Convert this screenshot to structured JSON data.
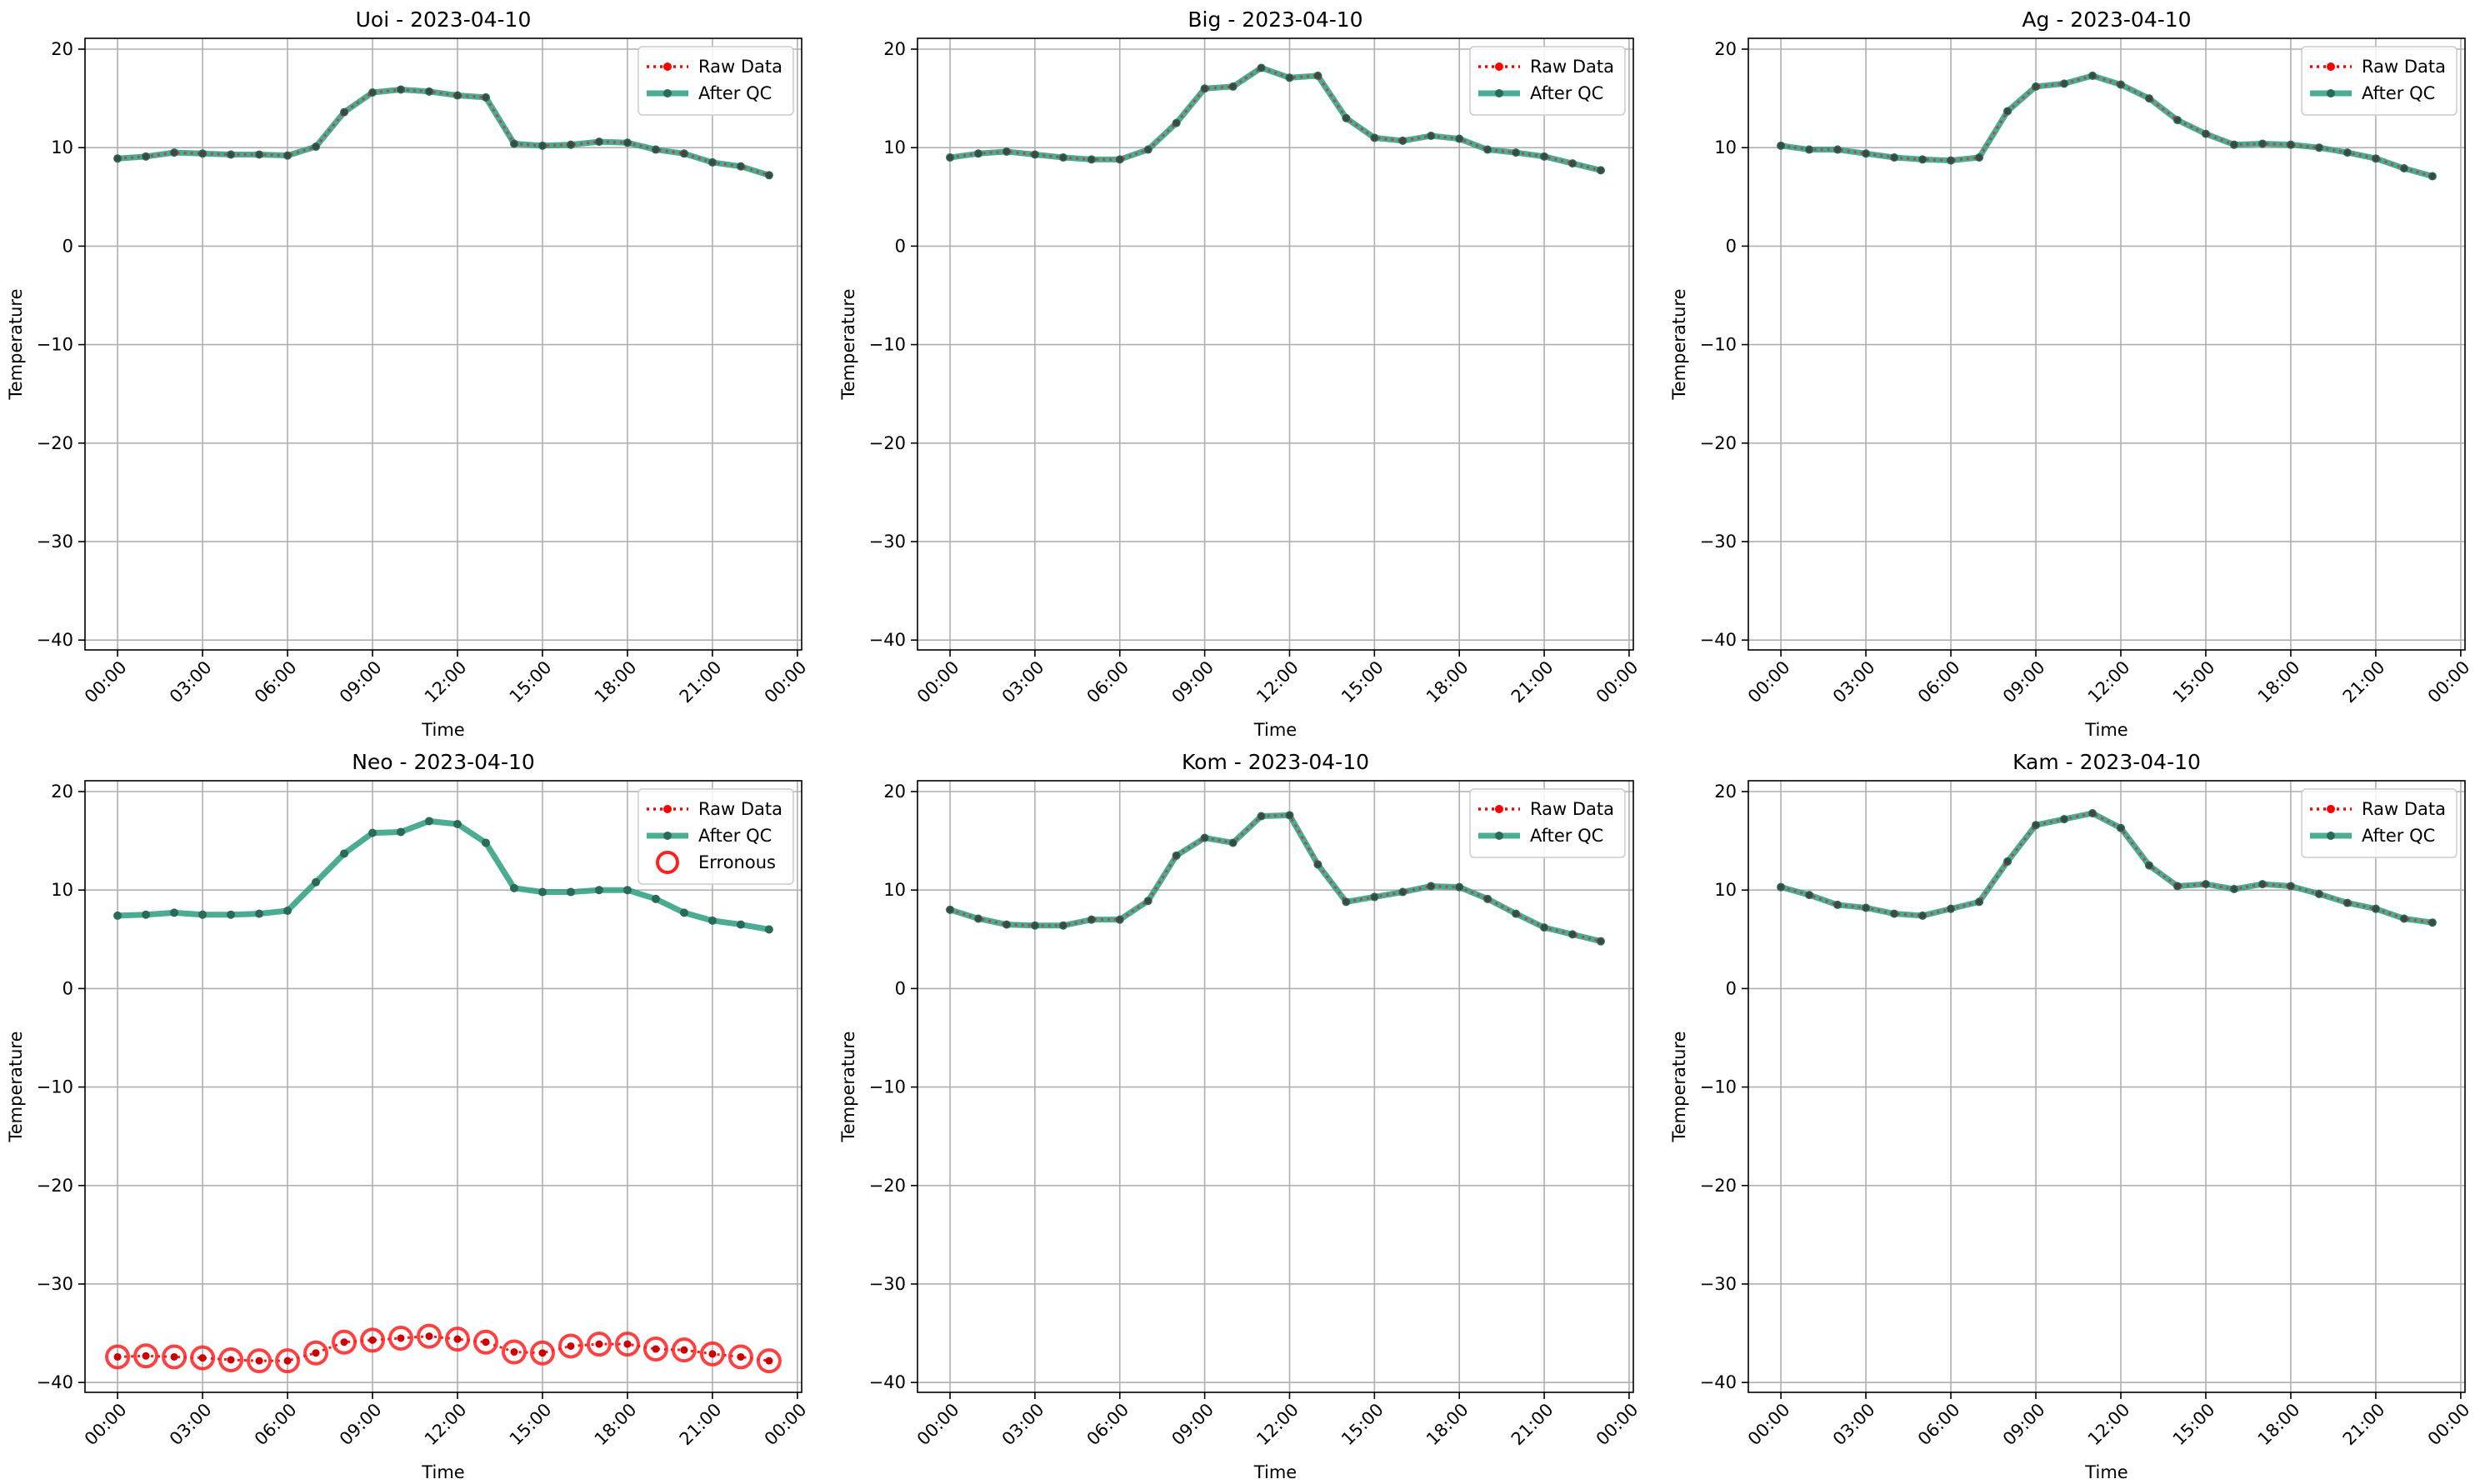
{
  "chart_data": [
    {
      "type": "line",
      "title": "Uoi - 2023-04-10",
      "xlabel": "Time",
      "ylabel": "Temperature",
      "ylim": [
        -40,
        20
      ],
      "yticks": [
        -40,
        -30,
        -20,
        -10,
        0,
        10,
        20
      ],
      "xticks": [
        "00:00",
        "03:00",
        "06:00",
        "09:00",
        "12:00",
        "15:00",
        "18:00",
        "21:00",
        "00:00"
      ],
      "grid": true,
      "legend_position": "upper-right",
      "x_hours": [
        0,
        1,
        2,
        3,
        4,
        5,
        6,
        7,
        8,
        9,
        10,
        11,
        12,
        13,
        14,
        15,
        16,
        17,
        18,
        19,
        20,
        21,
        22,
        23
      ],
      "series": [
        {
          "name": "Raw Data",
          "color": "#ff0000",
          "values": [
            8.9,
            9.1,
            9.5,
            9.4,
            9.3,
            9.3,
            9.2,
            10.1,
            13.6,
            15.6,
            15.9,
            15.7,
            15.3,
            15.1,
            10.4,
            10.2,
            10.3,
            10.6,
            10.5,
            9.8,
            9.4,
            8.5,
            8.1,
            7.2
          ]
        },
        {
          "name": "After QC",
          "color": "#2a9d7f",
          "values": [
            8.9,
            9.1,
            9.5,
            9.4,
            9.3,
            9.3,
            9.2,
            10.1,
            13.6,
            15.6,
            15.9,
            15.7,
            15.3,
            15.1,
            10.4,
            10.2,
            10.3,
            10.6,
            10.5,
            9.8,
            9.4,
            8.5,
            8.1,
            7.2
          ]
        }
      ],
      "legend": [
        "Raw Data",
        "After QC"
      ]
    },
    {
      "type": "line",
      "title": "Big - 2023-04-10",
      "xlabel": "Time",
      "ylabel": "Temperature",
      "ylim": [
        -40,
        20
      ],
      "yticks": [
        -40,
        -30,
        -20,
        -10,
        0,
        10,
        20
      ],
      "xticks": [
        "00:00",
        "03:00",
        "06:00",
        "09:00",
        "12:00",
        "15:00",
        "18:00",
        "21:00",
        "00:00"
      ],
      "grid": true,
      "legend_position": "upper-right",
      "x_hours": [
        0,
        1,
        2,
        3,
        4,
        5,
        6,
        7,
        8,
        9,
        10,
        11,
        12,
        13,
        14,
        15,
        16,
        17,
        18,
        19,
        20,
        21,
        22,
        23
      ],
      "series": [
        {
          "name": "Raw Data",
          "color": "#ff0000",
          "values": [
            9.0,
            9.4,
            9.6,
            9.3,
            9.0,
            8.8,
            8.8,
            9.8,
            12.5,
            16.0,
            16.2,
            18.1,
            17.1,
            17.3,
            13.0,
            11.0,
            10.7,
            11.2,
            10.9,
            9.8,
            9.5,
            9.1,
            8.4,
            7.7
          ]
        },
        {
          "name": "After QC",
          "color": "#2a9d7f",
          "values": [
            9.0,
            9.4,
            9.6,
            9.3,
            9.0,
            8.8,
            8.8,
            9.8,
            12.5,
            16.0,
            16.2,
            18.1,
            17.1,
            17.3,
            13.0,
            11.0,
            10.7,
            11.2,
            10.9,
            9.8,
            9.5,
            9.1,
            8.4,
            7.7
          ]
        }
      ],
      "legend": [
        "Raw Data",
        "After QC"
      ]
    },
    {
      "type": "line",
      "title": "Ag - 2023-04-10",
      "xlabel": "Time",
      "ylabel": "Temperature",
      "ylim": [
        -40,
        20
      ],
      "yticks": [
        -40,
        -30,
        -20,
        -10,
        0,
        10,
        20
      ],
      "xticks": [
        "00:00",
        "03:00",
        "06:00",
        "09:00",
        "12:00",
        "15:00",
        "18:00",
        "21:00",
        "00:00"
      ],
      "grid": true,
      "legend_position": "upper-right",
      "x_hours": [
        0,
        1,
        2,
        3,
        4,
        5,
        6,
        7,
        8,
        9,
        10,
        11,
        12,
        13,
        14,
        15,
        16,
        17,
        18,
        19,
        20,
        21,
        22,
        23
      ],
      "series": [
        {
          "name": "Raw Data",
          "color": "#ff0000",
          "values": [
            10.2,
            9.8,
            9.8,
            9.4,
            9.0,
            8.8,
            8.7,
            9.0,
            13.7,
            16.2,
            16.5,
            17.3,
            16.4,
            15.0,
            12.8,
            11.4,
            10.3,
            10.4,
            10.3,
            10.0,
            9.5,
            8.9,
            7.9,
            7.1
          ]
        },
        {
          "name": "After QC",
          "color": "#2a9d7f",
          "values": [
            10.2,
            9.8,
            9.8,
            9.4,
            9.0,
            8.8,
            8.7,
            9.0,
            13.7,
            16.2,
            16.5,
            17.3,
            16.4,
            15.0,
            12.8,
            11.4,
            10.3,
            10.4,
            10.3,
            10.0,
            9.5,
            8.9,
            7.9,
            7.1
          ]
        }
      ],
      "legend": [
        "Raw Data",
        "After QC"
      ]
    },
    {
      "type": "line",
      "title": "Neo - 2023-04-10",
      "xlabel": "Time",
      "ylabel": "Temperature",
      "ylim": [
        -40,
        20
      ],
      "yticks": [
        -40,
        -30,
        -20,
        -10,
        0,
        10,
        20
      ],
      "xticks": [
        "00:00",
        "03:00",
        "06:00",
        "09:00",
        "12:00",
        "15:00",
        "18:00",
        "21:00",
        "00:00"
      ],
      "grid": true,
      "legend_position": "upper-right",
      "x_hours": [
        0,
        1,
        2,
        3,
        4,
        5,
        6,
        7,
        8,
        9,
        10,
        11,
        12,
        13,
        14,
        15,
        16,
        17,
        18,
        19,
        20,
        21,
        22,
        23
      ],
      "series": [
        {
          "name": "Raw Data",
          "color": "#ff0000",
          "values": [
            -37.4,
            -37.3,
            -37.4,
            -37.5,
            -37.7,
            -37.8,
            -37.8,
            -37.0,
            -35.9,
            -35.7,
            -35.5,
            -35.3,
            -35.6,
            -35.9,
            -36.9,
            -37.0,
            -36.3,
            -36.1,
            -36.1,
            -36.6,
            -36.7,
            -37.1,
            -37.4,
            -37.8
          ]
        },
        {
          "name": "After QC",
          "color": "#2a9d7f",
          "values": [
            7.4,
            7.5,
            7.7,
            7.5,
            7.5,
            7.6,
            7.9,
            10.8,
            13.7,
            15.8,
            15.9,
            17.0,
            16.7,
            14.8,
            10.2,
            9.8,
            9.8,
            10.0,
            10.0,
            9.1,
            7.7,
            6.9,
            6.5,
            6.0
          ]
        },
        {
          "name": "Erronous",
          "color": "#ff0000",
          "values": [
            -37.4,
            -37.3,
            -37.4,
            -37.5,
            -37.7,
            -37.8,
            -37.8,
            -37.0,
            -35.9,
            -35.7,
            -35.5,
            -35.3,
            -35.6,
            -35.9,
            -36.9,
            -37.0,
            -36.3,
            -36.1,
            -36.1,
            -36.6,
            -36.7,
            -37.1,
            -37.4,
            -37.8
          ]
        }
      ],
      "legend": [
        "Raw Data",
        "After QC",
        "Erronous"
      ]
    },
    {
      "type": "line",
      "title": "Kom - 2023-04-10",
      "xlabel": "Time",
      "ylabel": "Temperature",
      "ylim": [
        -40,
        20
      ],
      "yticks": [
        -40,
        -30,
        -20,
        -10,
        0,
        10,
        20
      ],
      "xticks": [
        "00:00",
        "03:00",
        "06:00",
        "09:00",
        "12:00",
        "15:00",
        "18:00",
        "21:00",
        "00:00"
      ],
      "grid": true,
      "legend_position": "upper-right",
      "x_hours": [
        0,
        1,
        2,
        3,
        4,
        5,
        6,
        7,
        8,
        9,
        10,
        11,
        12,
        13,
        14,
        15,
        16,
        17,
        18,
        19,
        20,
        21,
        22,
        23
      ],
      "series": [
        {
          "name": "Raw Data",
          "color": "#ff0000",
          "values": [
            8.0,
            7.1,
            6.5,
            6.4,
            6.4,
            7.0,
            7.0,
            8.9,
            13.5,
            15.3,
            14.8,
            17.5,
            17.6,
            12.6,
            8.8,
            9.3,
            9.8,
            10.4,
            10.3,
            9.1,
            7.6,
            6.2,
            5.5,
            4.8
          ]
        },
        {
          "name": "After QC",
          "color": "#2a9d7f",
          "values": [
            8.0,
            7.1,
            6.5,
            6.4,
            6.4,
            7.0,
            7.0,
            8.9,
            13.5,
            15.3,
            14.8,
            17.5,
            17.6,
            12.6,
            8.8,
            9.3,
            9.8,
            10.4,
            10.3,
            9.1,
            7.6,
            6.2,
            5.5,
            4.8
          ]
        }
      ],
      "legend": [
        "Raw Data",
        "After QC"
      ]
    },
    {
      "type": "line",
      "title": "Kam - 2023-04-10",
      "xlabel": "Time",
      "ylabel": "Temperature",
      "ylim": [
        -40,
        20
      ],
      "yticks": [
        -40,
        -30,
        -20,
        -10,
        0,
        10,
        20
      ],
      "xticks": [
        "00:00",
        "03:00",
        "06:00",
        "09:00",
        "12:00",
        "15:00",
        "18:00",
        "21:00",
        "00:00"
      ],
      "grid": true,
      "legend_position": "upper-right",
      "x_hours": [
        0,
        1,
        2,
        3,
        4,
        5,
        6,
        7,
        8,
        9,
        10,
        11,
        12,
        13,
        14,
        15,
        16,
        17,
        18,
        19,
        20,
        21,
        22,
        23
      ],
      "series": [
        {
          "name": "Raw Data",
          "color": "#ff0000",
          "values": [
            10.3,
            9.5,
            8.5,
            8.2,
            7.6,
            7.4,
            8.1,
            8.8,
            12.9,
            16.6,
            17.2,
            17.8,
            16.3,
            12.5,
            10.4,
            10.6,
            10.1,
            10.6,
            10.4,
            9.6,
            8.7,
            8.1,
            7.1,
            6.7
          ]
        },
        {
          "name": "After QC",
          "color": "#2a9d7f",
          "values": [
            10.3,
            9.5,
            8.5,
            8.2,
            7.6,
            7.4,
            8.1,
            8.8,
            12.9,
            16.6,
            17.2,
            17.8,
            16.3,
            12.5,
            10.4,
            10.6,
            10.1,
            10.6,
            10.4,
            9.6,
            8.7,
            8.1,
            7.1,
            6.7
          ]
        }
      ],
      "legend": [
        "Raw Data",
        "After QC"
      ]
    }
  ]
}
